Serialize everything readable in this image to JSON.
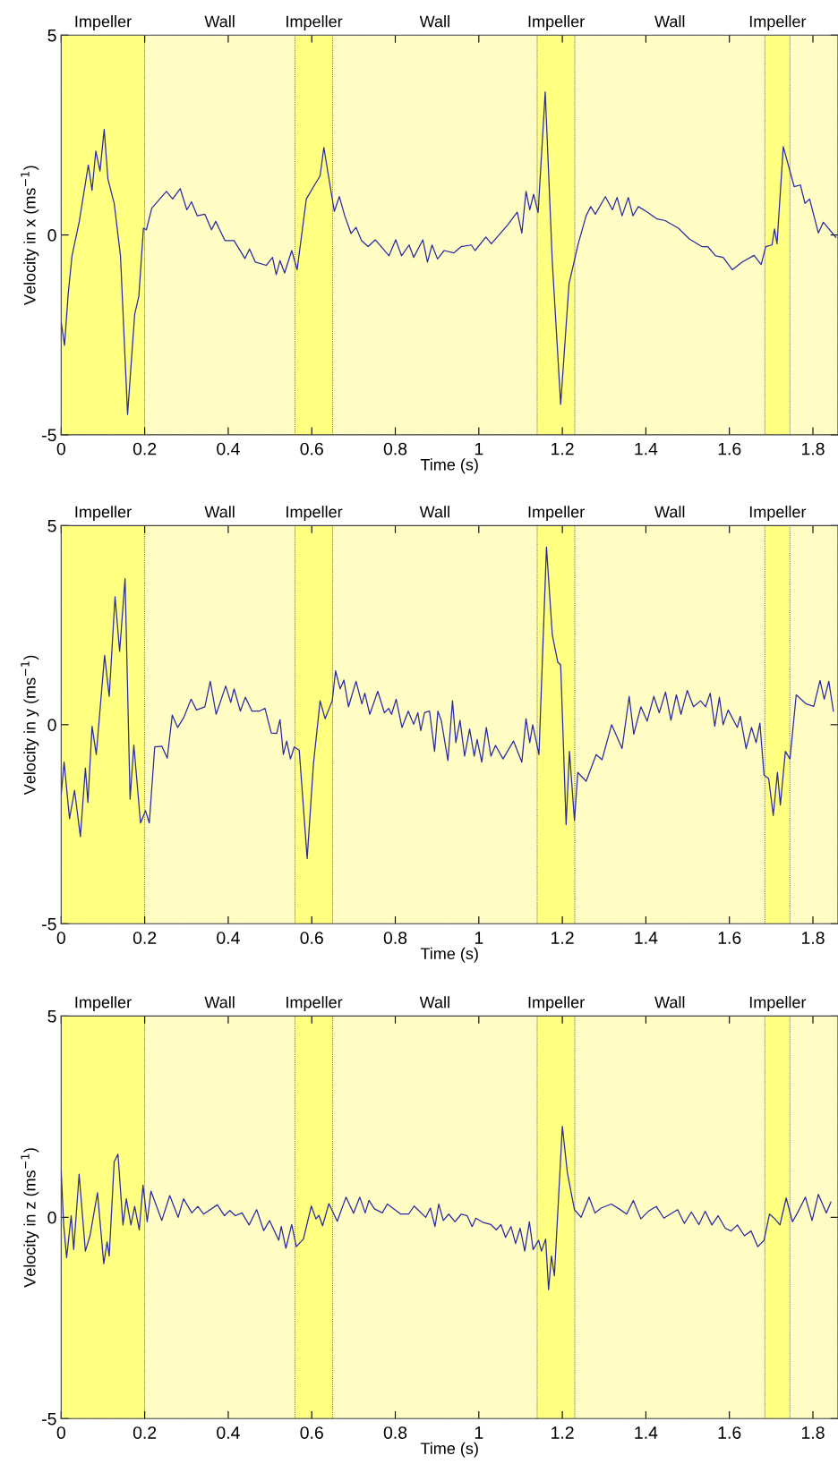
{
  "chart_data": [
    {
      "type": "line",
      "xlabel": "Time (s)",
      "ylabel": "Velocity in x (ms$^{−1}$)",
      "xlim": [
        0,
        1.86
      ],
      "ylim": [
        -5,
        5
      ],
      "xticks": [
        0,
        0.2,
        0.4,
        0.6,
        0.8,
        1,
        1.2,
        1.4,
        1.6,
        1.8
      ],
      "yticks": [
        -5,
        0,
        5
      ],
      "legend": false,
      "bands": [
        {
          "axis": "x",
          "from": 0,
          "to": 0.2,
          "label": "Impeller",
          "color": "#ffff80"
        },
        {
          "axis": "x",
          "from": 0.2,
          "to": 0.56,
          "label": "Wall",
          "color": "#fffcc4"
        },
        {
          "axis": "x",
          "from": 0.56,
          "to": 0.65,
          "label": "Impeller",
          "color": "#ffff80"
        },
        {
          "axis": "x",
          "from": 0.65,
          "to": 1.14,
          "label": "Wall",
          "color": "#fffcc4"
        },
        {
          "axis": "x",
          "from": 1.14,
          "to": 1.23,
          "label": "Impeller",
          "color": "#ffff80"
        },
        {
          "axis": "x",
          "from": 1.23,
          "to": 1.685,
          "label": "Wall",
          "color": "#fffcc4"
        },
        {
          "axis": "x",
          "from": 1.685,
          "to": 1.745,
          "label": "Impeller",
          "color": "#ffff80"
        },
        {
          "axis": "x",
          "from": 1.745,
          "to": 1.86,
          "color": "#fffcc4"
        }
      ],
      "x": [
        0,
        0.008,
        0.017,
        0.026,
        0.043,
        0.065,
        0.074,
        0.083,
        0.093,
        0.103,
        0.112,
        0.127,
        0.142,
        0.159,
        0.176,
        0.186,
        0.197,
        0.204,
        0.217,
        0.252,
        0.267,
        0.285,
        0.301,
        0.312,
        0.326,
        0.344,
        0.36,
        0.37,
        0.392,
        0.414,
        0.44,
        0.451,
        0.465,
        0.491,
        0.506,
        0.515,
        0.524,
        0.535,
        0.552,
        0.565,
        0.587,
        0.609,
        0.62,
        0.629,
        0.64,
        0.654,
        0.666,
        0.679,
        0.694,
        0.706,
        0.719,
        0.735,
        0.752,
        0.785,
        0.801,
        0.815,
        0.833,
        0.844,
        0.866,
        0.877,
        0.888,
        0.901,
        0.917,
        0.94,
        0.958,
        0.982,
        0.991,
        1.017,
        1.03,
        1.069,
        1.092,
        1.103,
        1.113,
        1.122,
        1.131,
        1.142,
        1.159,
        1.176,
        1.196,
        1.216,
        1.238,
        1.257,
        1.268,
        1.279,
        1.303,
        1.32,
        1.331,
        1.343,
        1.358,
        1.369,
        1.382,
        1.401,
        1.427,
        1.446,
        1.478,
        1.504,
        1.534,
        1.548,
        1.567,
        1.585,
        1.607,
        1.63,
        1.659,
        1.676,
        1.687,
        1.702,
        1.708,
        1.714,
        1.729,
        1.755,
        1.77,
        1.781,
        1.792,
        1.813,
        1.825,
        1.855
      ],
      "series": [
        {
          "color": "#2a2aa0",
          "values": [
            -2.18,
            -2.76,
            -1.45,
            -0.52,
            0.32,
            1.75,
            1.12,
            2.1,
            1.6,
            2.64,
            1.4,
            0.79,
            -0.52,
            -4.49,
            -1.99,
            -1.53,
            0.17,
            0.13,
            0.67,
            1.09,
            0.9,
            1.16,
            0.63,
            0.83,
            0.48,
            0.52,
            0.13,
            0.34,
            -0.14,
            -0.14,
            -0.59,
            -0.35,
            -0.68,
            -0.76,
            -0.56,
            -0.99,
            -0.64,
            -0.95,
            -0.39,
            -0.87,
            0.9,
            1.29,
            1.48,
            2.19,
            1.48,
            0.59,
            0.96,
            0.48,
            0.04,
            0.19,
            -0.14,
            -0.29,
            -0.12,
            -0.52,
            -0.12,
            -0.52,
            -0.25,
            -0.56,
            -0.12,
            -0.68,
            -0.25,
            -0.6,
            -0.39,
            -0.45,
            -0.29,
            -0.25,
            -0.39,
            -0.05,
            -0.22,
            0.25,
            0.57,
            0.05,
            1.09,
            0.63,
            1.02,
            0.56,
            3.58,
            -0.68,
            -4.24,
            -1.22,
            -0.22,
            0.48,
            0.71,
            0.52,
            0.96,
            0.63,
            0.94,
            0.48,
            0.94,
            0.48,
            0.71,
            0.59,
            0.4,
            0.36,
            0.17,
            -0.1,
            -0.29,
            -0.29,
            -0.52,
            -0.56,
            -0.87,
            -0.68,
            -0.51,
            -0.74,
            -0.29,
            -0.25,
            0.15,
            -0.22,
            2.21,
            1.21,
            1.25,
            0.79,
            0.9,
            0.05,
            0.32,
            -0.06
          ]
        }
      ]
    },
    {
      "type": "line",
      "xlabel": "Time (s)",
      "ylabel": "Velocity in y (ms$^{−1}$)",
      "xlim": [
        0,
        1.86
      ],
      "ylim": [
        -5,
        5
      ],
      "xticks": [
        0,
        0.2,
        0.4,
        0.6,
        0.8,
        1,
        1.2,
        1.4,
        1.6,
        1.8
      ],
      "yticks": [
        -5,
        0,
        5
      ],
      "legend": false,
      "bands": [
        {
          "axis": "x",
          "from": 0,
          "to": 0.2,
          "label": "Impeller",
          "color": "#ffff80"
        },
        {
          "axis": "x",
          "from": 0.2,
          "to": 0.56,
          "label": "Wall",
          "color": "#fffcc4"
        },
        {
          "axis": "x",
          "from": 0.56,
          "to": 0.65,
          "label": "Impeller",
          "color": "#ffff80"
        },
        {
          "axis": "x",
          "from": 0.65,
          "to": 1.14,
          "label": "Wall",
          "color": "#fffcc4"
        },
        {
          "axis": "x",
          "from": 1.14,
          "to": 1.23,
          "label": "Impeller",
          "color": "#ffff80"
        },
        {
          "axis": "x",
          "from": 1.23,
          "to": 1.685,
          "label": "Wall",
          "color": "#fffcc4"
        },
        {
          "axis": "x",
          "from": 1.685,
          "to": 1.745,
          "label": "Impeller",
          "color": "#ffff80"
        },
        {
          "axis": "x",
          "from": 1.745,
          "to": 1.86,
          "color": "#fffcc4"
        }
      ],
      "x": [
        0,
        0.007,
        0.02,
        0.032,
        0.046,
        0.058,
        0.064,
        0.074,
        0.084,
        0.104,
        0.115,
        0.129,
        0.14,
        0.153,
        0.165,
        0.174,
        0.19,
        0.202,
        0.211,
        0.224,
        0.241,
        0.254,
        0.266,
        0.279,
        0.294,
        0.311,
        0.324,
        0.344,
        0.357,
        0.371,
        0.394,
        0.406,
        0.414,
        0.429,
        0.441,
        0.457,
        0.474,
        0.488,
        0.503,
        0.516,
        0.524,
        0.532,
        0.54,
        0.549,
        0.558,
        0.57,
        0.589,
        0.604,
        0.62,
        0.632,
        0.649,
        0.657,
        0.668,
        0.677,
        0.688,
        0.706,
        0.72,
        0.727,
        0.739,
        0.758,
        0.774,
        0.784,
        0.791,
        0.802,
        0.816,
        0.831,
        0.844,
        0.854,
        0.861,
        0.87,
        0.882,
        0.894,
        0.902,
        0.91,
        0.926,
        0.937,
        0.945,
        0.955,
        0.966,
        0.978,
        0.989,
        0.996,
        1.007,
        1.018,
        1.029,
        1.04,
        1.058,
        1.083,
        1.103,
        1.113,
        1.122,
        1.129,
        1.144,
        1.162,
        1.176,
        1.189,
        1.196,
        1.209,
        1.217,
        1.229,
        1.237,
        1.257,
        1.281,
        1.295,
        1.318,
        1.343,
        1.36,
        1.371,
        1.388,
        1.403,
        1.419,
        1.432,
        1.447,
        1.46,
        1.473,
        1.484,
        1.499,
        1.514,
        1.531,
        1.543,
        1.554,
        1.565,
        1.576,
        1.585,
        1.597,
        1.619,
        1.626,
        1.64,
        1.653,
        1.664,
        1.673,
        1.683,
        1.694,
        1.705,
        1.715,
        1.722,
        1.734,
        1.745,
        1.76,
        1.784,
        1.802,
        1.817,
        1.827,
        1.838,
        1.849
      ],
      "series": [
        {
          "color": "#2a2aa0",
          "values": [
            -1.76,
            -0.94,
            -2.36,
            -1.65,
            -2.81,
            -1.09,
            -1.95,
            -0.04,
            -0.75,
            1.74,
            0.71,
            3.21,
            1.84,
            3.67,
            -1.87,
            -0.51,
            -2.47,
            -2.16,
            -2.47,
            -0.56,
            -0.54,
            -0.84,
            0.24,
            -0.07,
            0.19,
            0.64,
            0.37,
            0.45,
            1.09,
            0.26,
            0.97,
            0.56,
            0.9,
            0.34,
            0.69,
            0.34,
            0.34,
            0.41,
            -0.21,
            -0.22,
            0.13,
            -0.75,
            -0.41,
            -0.86,
            -0.56,
            -0.64,
            -3.36,
            -0.99,
            0.6,
            0.15,
            0.6,
            1.35,
            0.9,
            1.12,
            0.45,
            1.09,
            0.52,
            0.79,
            0.26,
            0.84,
            0.3,
            0.41,
            0.26,
            0.64,
            -0.07,
            0.34,
            0.01,
            0.3,
            -0.15,
            0.3,
            0.34,
            -0.67,
            0.34,
            0.11,
            -0.9,
            0.6,
            -0.45,
            0.11,
            -0.79,
            -0.11,
            -0.79,
            -0.37,
            -0.94,
            -0.07,
            -0.79,
            -0.52,
            -0.86,
            -0.41,
            -0.94,
            0.15,
            -0.45,
            0.0,
            -0.75,
            4.46,
            2.25,
            1.57,
            1.5,
            -2.51,
            -0.67,
            -2.4,
            -1.2,
            -1.42,
            -0.75,
            -0.88,
            0.0,
            -0.6,
            0.71,
            -0.24,
            0.45,
            0.09,
            0.71,
            0.3,
            0.82,
            0.11,
            0.75,
            0.26,
            0.86,
            0.45,
            0.6,
            0.45,
            0.79,
            -0.04,
            0.69,
            0.0,
            0.37,
            -0.07,
            0.21,
            -0.6,
            -0.07,
            -0.45,
            0.04,
            -1.27,
            -1.35,
            -2.28,
            -1.2,
            -2.02,
            -0.67,
            -0.86,
            0.75,
            0.52,
            0.46,
            1.11,
            0.64,
            1.09,
            0.34
          ]
        }
      ]
    },
    {
      "type": "line",
      "xlabel": "Time (s)",
      "ylabel": "Velocity in z (ms$^{−1}$)",
      "xlim": [
        0,
        1.86
      ],
      "ylim": [
        -5,
        5
      ],
      "xticks": [
        0,
        0.2,
        0.4,
        0.6,
        0.8,
        1,
        1.2,
        1.4,
        1.6,
        1.8
      ],
      "yticks": [
        -5,
        0,
        5
      ],
      "legend": false,
      "bands": [
        {
          "axis": "x",
          "from": 0,
          "to": 0.2,
          "label": "Impeller",
          "color": "#ffff80"
        },
        {
          "axis": "x",
          "from": 0.2,
          "to": 0.56,
          "label": "Wall",
          "color": "#fffcc4"
        },
        {
          "axis": "x",
          "from": 0.56,
          "to": 0.65,
          "label": "Impeller",
          "color": "#ffff80"
        },
        {
          "axis": "x",
          "from": 0.65,
          "to": 1.14,
          "label": "Wall",
          "color": "#fffcc4"
        },
        {
          "axis": "x",
          "from": 1.14,
          "to": 1.23,
          "label": "Impeller",
          "color": "#ffff80"
        },
        {
          "axis": "x",
          "from": 1.23,
          "to": 1.685,
          "label": "Wall",
          "color": "#fffcc4"
        },
        {
          "axis": "x",
          "from": 1.685,
          "to": 1.745,
          "label": "Impeller",
          "color": "#ffff80"
        },
        {
          "axis": "x",
          "from": 1.745,
          "to": 1.86,
          "color": "#fffcc4"
        }
      ],
      "x": [
        0,
        0.006,
        0.013,
        0.024,
        0.03,
        0.043,
        0.058,
        0.069,
        0.087,
        0.102,
        0.11,
        0.115,
        0.127,
        0.136,
        0.148,
        0.156,
        0.167,
        0.176,
        0.187,
        0.196,
        0.206,
        0.215,
        0.241,
        0.26,
        0.28,
        0.293,
        0.313,
        0.327,
        0.341,
        0.374,
        0.391,
        0.404,
        0.417,
        0.433,
        0.45,
        0.468,
        0.485,
        0.499,
        0.521,
        0.527,
        0.538,
        0.552,
        0.563,
        0.58,
        0.599,
        0.61,
        0.617,
        0.626,
        0.641,
        0.661,
        0.682,
        0.7,
        0.715,
        0.728,
        0.737,
        0.75,
        0.769,
        0.781,
        0.813,
        0.832,
        0.845,
        0.873,
        0.884,
        0.895,
        0.904,
        0.915,
        0.928,
        0.943,
        0.958,
        0.972,
        0.984,
        0.993,
        1.011,
        1.029,
        1.042,
        1.053,
        1.064,
        1.077,
        1.088,
        1.099,
        1.11,
        1.121,
        1.13,
        1.143,
        1.15,
        1.16,
        1.167,
        1.174,
        1.181,
        1.2,
        1.212,
        1.229,
        1.245,
        1.264,
        1.278,
        1.293,
        1.317,
        1.336,
        1.354,
        1.37,
        1.388,
        1.406,
        1.425,
        1.443,
        1.476,
        1.492,
        1.509,
        1.527,
        1.542,
        1.558,
        1.573,
        1.59,
        1.604,
        1.619,
        1.636,
        1.652,
        1.668,
        1.683,
        1.696,
        1.709,
        1.721,
        1.736,
        1.751,
        1.763,
        1.782,
        1.798,
        1.813,
        1.832,
        1.843
      ],
      "series": [
        {
          "color": "#2a2aa0",
          "values": [
            1.15,
            -0.19,
            -1.0,
            0.04,
            -0.8,
            1.07,
            -0.84,
            -0.46,
            0.61,
            -1.15,
            -0.61,
            -0.96,
            1.38,
            1.57,
            -0.19,
            0.46,
            -0.19,
            0.27,
            -0.31,
            0.8,
            -0.11,
            0.65,
            -0.08,
            0.54,
            0.0,
            0.46,
            0.11,
            0.27,
            0.08,
            0.31,
            0.04,
            0.17,
            0.04,
            0.11,
            -0.19,
            0.19,
            -0.33,
            -0.08,
            -0.57,
            -0.23,
            -0.77,
            -0.18,
            -0.73,
            -0.54,
            0.28,
            -0.04,
            0.05,
            -0.21,
            0.34,
            -0.1,
            0.5,
            0.1,
            0.5,
            0.11,
            0.42,
            0.21,
            0.11,
            0.33,
            0.08,
            0.08,
            0.28,
            0.0,
            0.23,
            -0.23,
            0.33,
            -0.08,
            0.08,
            -0.11,
            0.08,
            0.04,
            -0.23,
            -0.02,
            -0.13,
            -0.18,
            -0.31,
            -0.18,
            -0.5,
            -0.23,
            -0.65,
            -0.27,
            -0.84,
            -0.11,
            -0.8,
            -0.57,
            -0.84,
            -0.54,
            -1.8,
            -0.96,
            -1.45,
            2.26,
            1.11,
            0.19,
            0.0,
            0.5,
            0.11,
            0.23,
            0.33,
            0.21,
            0.08,
            0.42,
            -0.04,
            0.15,
            0.27,
            -0.02,
            0.19,
            -0.15,
            0.13,
            -0.18,
            0.15,
            -0.19,
            0.04,
            -0.27,
            -0.34,
            -0.19,
            -0.46,
            -0.34,
            -0.73,
            -0.57,
            0.08,
            -0.04,
            -0.19,
            0.48,
            -0.11,
            0.11,
            0.5,
            -0.08,
            0.57,
            0.11,
            0.38
          ]
        }
      ]
    }
  ]
}
